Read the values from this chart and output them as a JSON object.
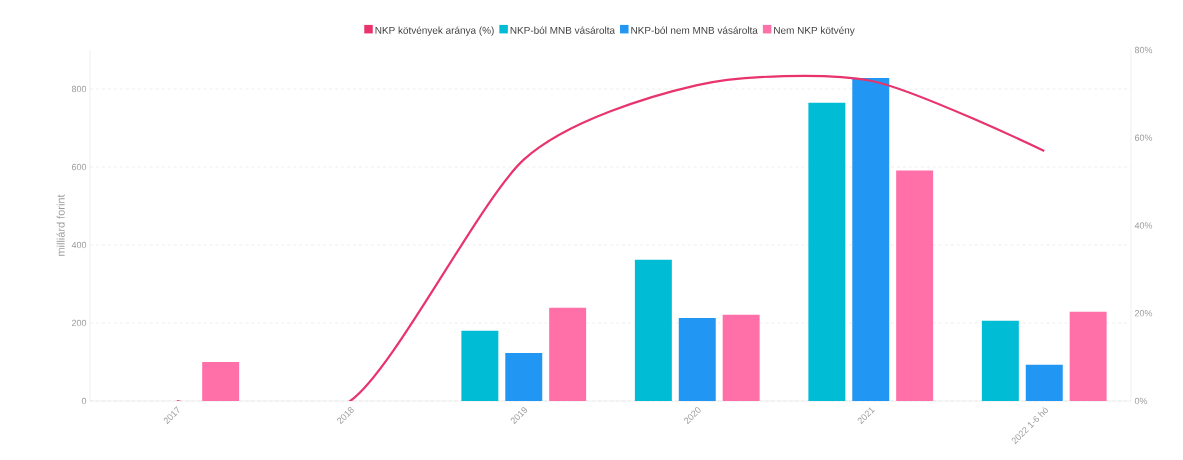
{
  "chart_data": {
    "type": "bar",
    "categories": [
      "2017",
      "2018",
      "2019",
      "2020",
      "2021",
      "2022 1-6 hó"
    ],
    "series": [
      {
        "name": "NKP kötvények aránya (%)",
        "type": "line",
        "axis": "y2",
        "color": "#e8336d",
        "values": [
          0,
          0,
          55,
          72,
          73,
          57
        ]
      },
      {
        "name": "NKP-ból MNB vásárolta",
        "color": "#00bcd4",
        "values": [
          0,
          0,
          180,
          362,
          765,
          206
        ]
      },
      {
        "name": "NKP-ból nem MNB vásárolta",
        "color": "#2196f3",
        "values": [
          0,
          0,
          123,
          213,
          828,
          93
        ]
      },
      {
        "name": "Nem NKP kötvény",
        "color": "#ff6fa8",
        "values": [
          100,
          0,
          239,
          221,
          591,
          229
        ]
      }
    ],
    "ylabel": "milliárd forint",
    "ylim": [
      0,
      900
    ],
    "yticks": [
      0,
      200,
      400,
      600,
      800
    ],
    "y2lim": [
      0,
      80
    ],
    "y2ticks": [
      {
        "value": 0,
        "label": "0%"
      },
      {
        "value": 20,
        "label": "20%"
      },
      {
        "value": 40,
        "label": "40%"
      },
      {
        "value": 60,
        "label": "60%"
      },
      {
        "value": 80,
        "label": "80%"
      }
    ],
    "grid": "y",
    "legend": "top"
  }
}
